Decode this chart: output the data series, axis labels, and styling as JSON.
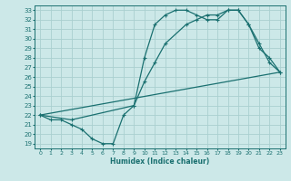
{
  "xlabel": "Humidex (Indice chaleur)",
  "bg_color": "#cce8e8",
  "line_color": "#1a7070",
  "grid_color": "#aad0d0",
  "xlim": [
    -0.5,
    23.5
  ],
  "ylim": [
    18.5,
    33.5
  ],
  "yticks": [
    19,
    20,
    21,
    22,
    23,
    24,
    25,
    26,
    27,
    28,
    29,
    30,
    31,
    32,
    33
  ],
  "xticks": [
    0,
    1,
    2,
    3,
    4,
    5,
    6,
    7,
    8,
    9,
    10,
    11,
    12,
    13,
    14,
    15,
    16,
    17,
    18,
    19,
    20,
    21,
    22,
    23
  ],
  "line1_x": [
    0,
    1,
    2,
    3,
    4,
    5,
    6,
    7,
    8,
    9,
    10,
    11,
    12,
    13,
    14,
    15,
    16,
    17,
    18,
    19,
    20,
    21,
    22,
    23
  ],
  "line1_y": [
    22.0,
    21.5,
    21.5,
    21.0,
    20.5,
    19.5,
    19.0,
    19.0,
    22.0,
    23.0,
    28.0,
    31.5,
    32.5,
    33.0,
    33.0,
    32.5,
    32.0,
    32.0,
    33.0,
    33.0,
    31.5,
    29.5,
    27.5,
    26.5
  ],
  "line2_x": [
    0,
    3,
    9,
    10,
    11,
    12,
    14,
    15,
    16,
    17,
    18,
    19,
    20,
    21,
    22,
    23
  ],
  "line2_y": [
    22.0,
    21.5,
    23.0,
    25.5,
    27.5,
    29.5,
    31.5,
    32.0,
    32.5,
    32.5,
    33.0,
    33.0,
    31.5,
    29.0,
    28.0,
    26.5
  ],
  "line3_x": [
    0,
    23
  ],
  "line3_y": [
    22.0,
    26.5
  ]
}
